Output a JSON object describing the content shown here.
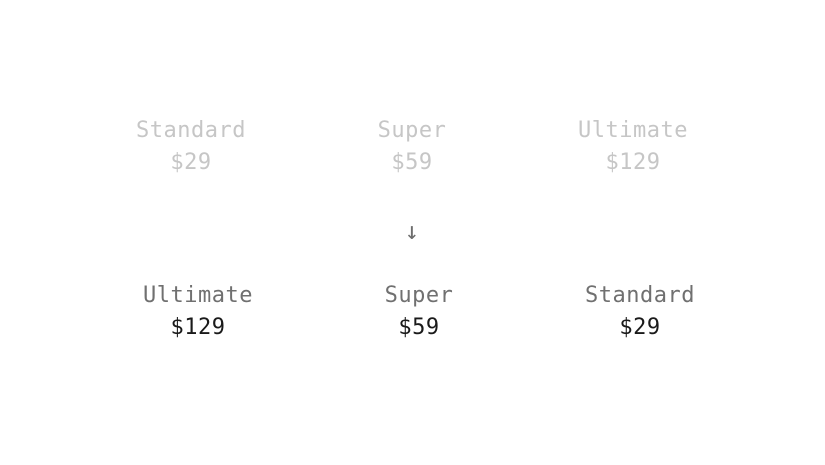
{
  "before": [
    {
      "name": "Standard",
      "price": "$29"
    },
    {
      "name": "Super",
      "price": "$59"
    },
    {
      "name": "Ultimate",
      "price": "$129"
    }
  ],
  "arrow": {
    "glyph": "↓",
    "icon": "arrow-down-icon"
  },
  "after": [
    {
      "name": "Ultimate",
      "price": "$129"
    },
    {
      "name": "Super",
      "price": "$59"
    },
    {
      "name": "Standard",
      "price": "$29"
    }
  ],
  "colors": {
    "faded_text": "#c6c6c6",
    "label_text": "#707070",
    "price_text": "#1a1a1a",
    "arrow": "#6d6d6d",
    "background": "#ffffff"
  }
}
